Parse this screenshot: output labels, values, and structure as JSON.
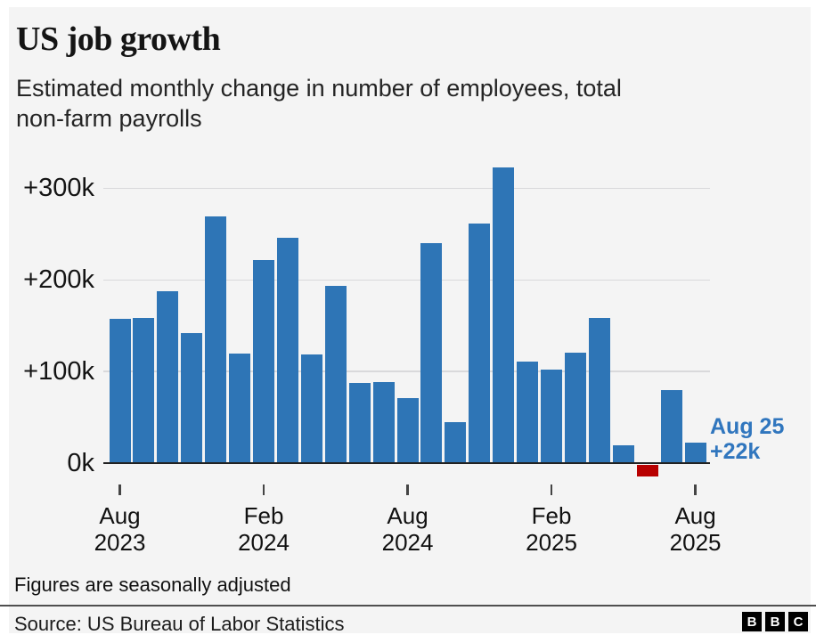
{
  "chart_data": {
    "type": "bar",
    "title": "US job growth",
    "subtitle_lines": [
      "Estimated monthly change in number of employees, total",
      "non-farm payrolls"
    ],
    "categories": [
      "Aug 2023",
      "Sep 2023",
      "Oct 2023",
      "Nov 2023",
      "Dec 2023",
      "Jan 2024",
      "Feb 2024",
      "Mar 2024",
      "Apr 2024",
      "May 2024",
      "Jun 2024",
      "Jul 2024",
      "Aug 2024",
      "Sep 2024",
      "Oct 2024",
      "Nov 2024",
      "Dec 2024",
      "Jan 2025",
      "Feb 2025",
      "Mar 2025",
      "Apr 2025",
      "May 2025",
      "Jun 2025",
      "Jul 2025",
      "Aug 2025"
    ],
    "values": [
      157,
      158,
      187,
      142,
      269,
      119,
      222,
      246,
      118,
      193,
      87,
      88,
      71,
      240,
      44,
      261,
      323,
      111,
      102,
      120,
      158,
      19,
      -13,
      79,
      22
    ],
    "unit": "thousands of employees",
    "ylim": [
      -20,
      340
    ],
    "grid": true,
    "legend": "none",
    "yticks": [
      {
        "v": 0,
        "label": "0k"
      },
      {
        "v": 100,
        "label": "+100k"
      },
      {
        "v": 200,
        "label": "+200k"
      },
      {
        "v": 300,
        "label": "+300k"
      }
    ],
    "xticks": [
      {
        "index": 0,
        "month": "Aug",
        "year": "2023"
      },
      {
        "index": 6,
        "month": "Feb",
        "year": "2024"
      },
      {
        "index": 12,
        "month": "Aug",
        "year": "2024"
      },
      {
        "index": 18,
        "month": "Feb",
        "year": "2025"
      },
      {
        "index": 24,
        "month": "Aug",
        "year": "2025"
      }
    ],
    "annotation": {
      "line1": "Aug 25",
      "line2": "+22k",
      "target": "Aug 2025"
    },
    "colors": {
      "positive": "#2e75b6",
      "negative": "#b80000",
      "annotation": "#3076be"
    }
  },
  "footer": {
    "note": "Figures are seasonally adjusted",
    "source": "Source: US Bureau of Labor Statistics",
    "logo": [
      "B",
      "B",
      "C"
    ]
  }
}
